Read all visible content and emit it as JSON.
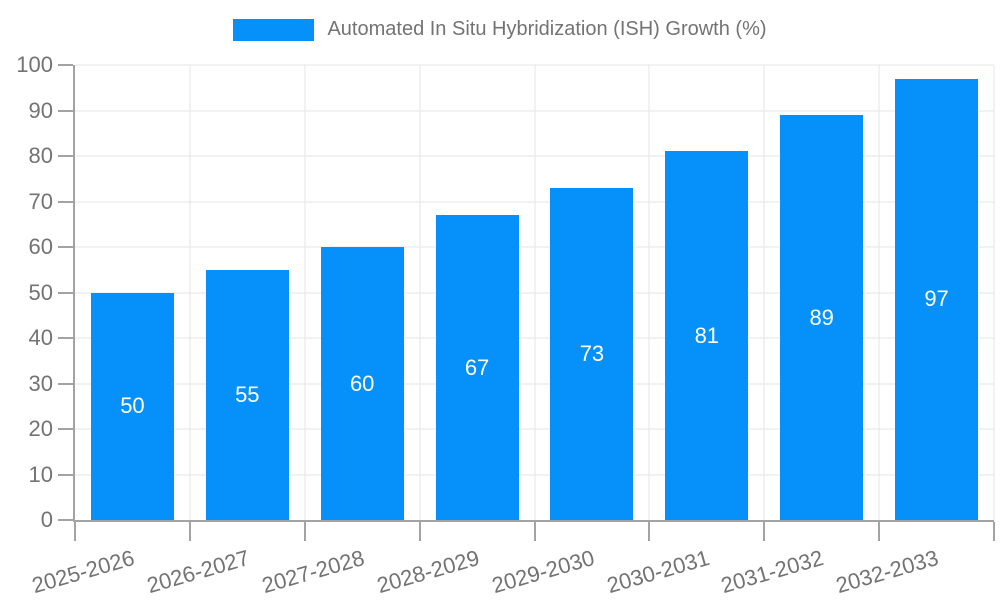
{
  "legend": {
    "items": [
      {
        "label": "Automated In Situ Hybridization (ISH) Growth (%)"
      }
    ]
  },
  "colors": {
    "bar": "#0690fa",
    "axis": "#a3a3a3",
    "grid": "#e5e5e5",
    "text": "#737373",
    "value_label": "#ffffff"
  },
  "chart_data": {
    "type": "bar",
    "title": "",
    "categories": [
      "2025-2026",
      "2026-2027",
      "2027-2028",
      "2028-2029",
      "2029-2030",
      "2030-2031",
      "2031-2032",
      "2032-2033"
    ],
    "values": [
      50,
      55,
      60,
      67,
      73,
      81,
      89,
      97
    ],
    "series": [
      {
        "name": "Automated In Situ Hybridization (ISH) Growth (%)",
        "values": [
          50,
          55,
          60,
          67,
          73,
          81,
          89,
          97
        ]
      }
    ],
    "xlabel": "",
    "ylabel": "",
    "ylim": [
      0,
      100
    ],
    "ytick_step": 10,
    "yticks": [
      0,
      10,
      20,
      30,
      40,
      50,
      60,
      70,
      80,
      90,
      100
    ],
    "grid": true,
    "legend_position": "top-center",
    "bar_labels_inside": true,
    "x_label_rotation_deg": -16
  }
}
